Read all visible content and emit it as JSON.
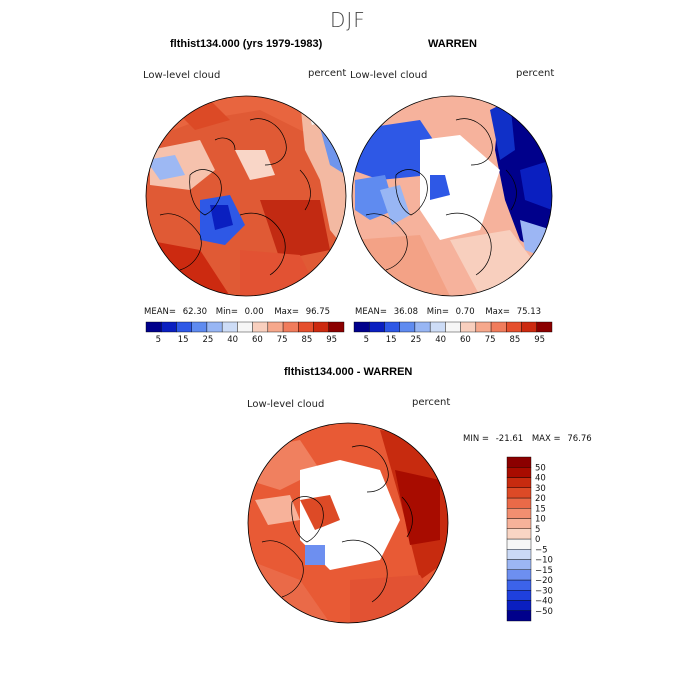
{
  "page_title": "DJF",
  "colors": {
    "abs_scale": [
      "#00008b",
      "#0a1fc0",
      "#2e58e6",
      "#5f8bf0",
      "#98b6f4",
      "#cddcf6",
      "#f6f6f6",
      "#f8cfbe",
      "#f6a88c",
      "#f07c5c",
      "#e54f2d",
      "#cc2a10",
      "#8b0000"
    ],
    "diff_scale": [
      "#00008b",
      "#0a1fc0",
      "#1f40dd",
      "#3c63ea",
      "#6d8ff0",
      "#9cb6f4",
      "#cad9f6",
      "#f6f6f6",
      "#f9d5c4",
      "#f7b29a",
      "#f28e70",
      "#ea6a48",
      "#dd4a26",
      "#c72b0f",
      "#a80c00",
      "#8b0000"
    ]
  },
  "panels": {
    "model": {
      "title": "flthist134.000 (yrs 1979-1983)",
      "var_label": "Low-level cloud",
      "units": "percent",
      "mean_label": "MEAN=",
      "mean": "62.30",
      "min_label": "Min=",
      "min": "0.00",
      "max_label": "Max=",
      "max": "96.75"
    },
    "obs": {
      "title": "WARREN",
      "var_label": "Low-level cloud",
      "units": "percent",
      "mean_label": "MEAN=",
      "mean": "36.08",
      "min_label": "Min=",
      "min": "0.70",
      "max_label": "Max=",
      "max": "75.13"
    },
    "diff": {
      "title": "flthist134.000 - WARREN",
      "var_label": "Low-level cloud",
      "units": "percent",
      "min_label": "MIN =",
      "min": "-21.61",
      "max_label": "MAX =",
      "max": "76.76"
    }
  },
  "chart_data": [
    {
      "type": "heatmap",
      "projection": "north polar stereographic",
      "title": "flthist134.000 (yrs 1979-1983)",
      "variable": "Low-level cloud",
      "units": "percent",
      "stats": {
        "mean": 62.3,
        "min": 0.0,
        "max": 96.75
      },
      "colorbar_levels": [
        5,
        10,
        15,
        20,
        25,
        30,
        40,
        50,
        60,
        70,
        75,
        80,
        85,
        90,
        95
      ],
      "colorbar_tick_labels": [
        "5",
        "15",
        "25",
        "40",
        "60",
        "75",
        "85",
        "95"
      ]
    },
    {
      "type": "heatmap",
      "projection": "north polar stereographic",
      "title": "WARREN",
      "variable": "Low-level cloud",
      "units": "percent",
      "stats": {
        "mean": 36.08,
        "min": 0.7,
        "max": 75.13
      },
      "colorbar_levels": [
        5,
        10,
        15,
        20,
        25,
        30,
        40,
        50,
        60,
        70,
        75,
        80,
        85,
        90,
        95
      ],
      "colorbar_tick_labels": [
        "5",
        "15",
        "25",
        "40",
        "60",
        "75",
        "85",
        "95"
      ]
    },
    {
      "type": "heatmap",
      "projection": "north polar stereographic",
      "title": "flthist134.000 - WARREN",
      "variable": "Low-level cloud",
      "units": "percent",
      "stats": {
        "min": -21.61,
        "max": 76.76
      },
      "colorbar_levels": [
        -50,
        -40,
        -30,
        -20,
        -15,
        -10,
        -5,
        0,
        5,
        10,
        15,
        20,
        30,
        40,
        50
      ],
      "colorbar_tick_labels": [
        "-50",
        "-40",
        "-30",
        "-20",
        "-15",
        "-10",
        "-5",
        "0",
        "5",
        "10",
        "15",
        "20",
        "30",
        "40",
        "50"
      ]
    }
  ]
}
